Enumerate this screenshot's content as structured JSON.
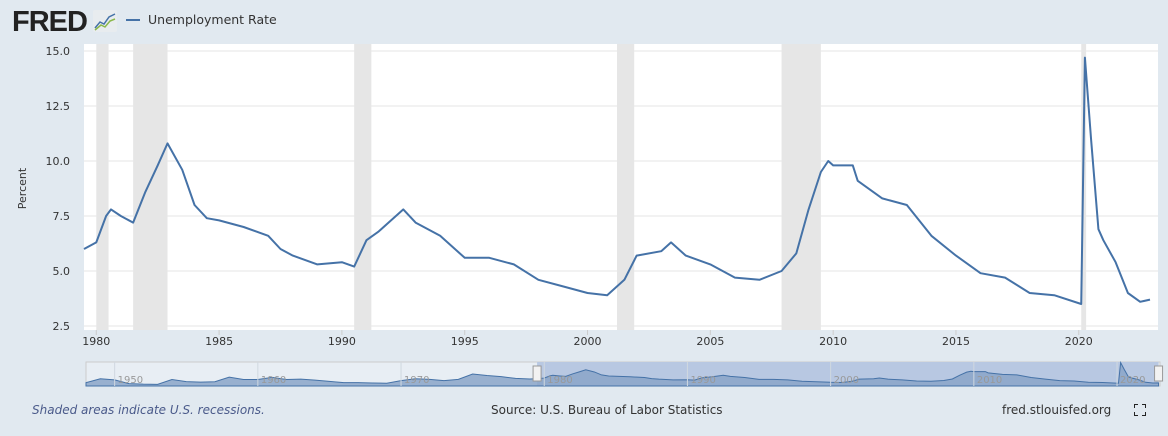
{
  "header": {
    "logo": "FRED",
    "legend_label": "Unemployment Rate"
  },
  "footer": {
    "recession_note": "Shaded areas indicate U.S. recessions.",
    "source": "Source: U.S. Bureau of Labor Statistics",
    "site": "fred.stlouisfed.org"
  },
  "colors": {
    "series": "#4572a7",
    "recession": "#e6e6e6",
    "background": "#e1e9f0",
    "navigator_fill": "#8aa4c8",
    "navigator_selection": "#b8c8e2"
  },
  "chart_data": {
    "type": "line",
    "title": "",
    "ylabel": "Percent",
    "xlabel": "",
    "ylim": [
      2.5,
      15.0
    ],
    "xlim": [
      1979.5,
      2022.9
    ],
    "yticks": [
      "2.5",
      "5.0",
      "7.5",
      "10.0",
      "12.5",
      "15.0"
    ],
    "xticks": [
      "1980",
      "1985",
      "1990",
      "1995",
      "2000",
      "2005",
      "2010",
      "2015",
      "2020"
    ],
    "grid": true,
    "legend_placement": "top-left",
    "recessions": [
      [
        1980.0,
        1980.5
      ],
      [
        1981.5,
        1982.9
      ],
      [
        1990.5,
        1991.2
      ],
      [
        2001.2,
        2001.9
      ],
      [
        2007.9,
        2009.5
      ],
      [
        2020.1,
        2020.3
      ]
    ],
    "series": [
      {
        "name": "Unemployment Rate",
        "x": [
          1979.5,
          1980.0,
          1980.4,
          1980.6,
          1981.0,
          1981.5,
          1982.0,
          1982.5,
          1982.9,
          1983.5,
          1984.0,
          1984.5,
          1985,
          1986,
          1987,
          1987.5,
          1988,
          1989,
          1990,
          1990.5,
          1991,
          1991.5,
          1992,
          1992.5,
          1993,
          1994,
          1995,
          1996,
          1997,
          1998,
          1999,
          2000,
          2000.8,
          2001.5,
          2002,
          2003,
          2003.4,
          2004,
          2005,
          2006,
          2007,
          2007.9,
          2008.5,
          2009,
          2009.5,
          2009.8,
          2010,
          2010.8,
          2011,
          2012,
          2013,
          2014,
          2015,
          2016,
          2017,
          2018,
          2019,
          2020.1,
          2020.25,
          2020.5,
          2020.8,
          2021,
          2021.5,
          2022,
          2022.5,
          2022.9
        ],
        "values": [
          6.0,
          6.3,
          7.5,
          7.8,
          7.5,
          7.2,
          8.6,
          9.8,
          10.8,
          9.6,
          8.0,
          7.4,
          7.3,
          7.0,
          6.6,
          6.0,
          5.7,
          5.3,
          5.4,
          5.2,
          6.4,
          6.8,
          7.3,
          7.8,
          7.2,
          6.6,
          5.6,
          5.6,
          5.3,
          4.6,
          4.3,
          4.0,
          3.9,
          4.6,
          5.7,
          5.9,
          6.3,
          5.7,
          5.3,
          4.7,
          4.6,
          5.0,
          5.8,
          7.8,
          9.5,
          10.0,
          9.8,
          9.8,
          9.1,
          8.3,
          8.0,
          6.6,
          5.7,
          4.9,
          4.7,
          4.0,
          3.9,
          3.5,
          14.7,
          11.0,
          6.9,
          6.4,
          5.4,
          4.0,
          3.6,
          3.7
        ]
      }
    ],
    "navigator": {
      "xticks": [
        "1950",
        "1960",
        "1970",
        "1980",
        "1990",
        "2000",
        "2010",
        "2020"
      ],
      "range": [
        1948,
        2023
      ],
      "selection": [
        1979.5,
        2022.9
      ],
      "x": [
        1948,
        1949,
        1950,
        1951,
        1952,
        1953,
        1954,
        1955,
        1956,
        1957,
        1958,
        1959,
        1960,
        1961,
        1962,
        1963,
        1964,
        1965,
        1966,
        1967,
        1968,
        1969,
        1970,
        1971,
        1972,
        1973,
        1974,
        1975,
        1976,
        1977,
        1978,
        1979
      ],
      "values": [
        3.8,
        5.9,
        5.3,
        3.3,
        3.0,
        2.9,
        5.5,
        4.4,
        4.1,
        4.3,
        6.8,
        5.5,
        5.5,
        6.7,
        5.5,
        5.7,
        5.2,
        4.5,
        3.8,
        3.8,
        3.6,
        3.5,
        4.9,
        5.9,
        5.6,
        4.9,
        5.6,
        8.5,
        7.7,
        7.1,
        6.1,
        5.8
      ]
    }
  }
}
